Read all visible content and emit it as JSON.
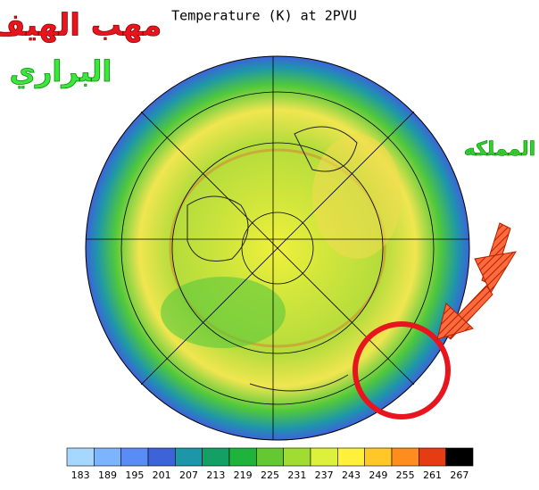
{
  "title": "Temperature (K) at 2PVU",
  "annotations": {
    "top_red": "مهب الهيف",
    "top_green": "البراري",
    "right_green": "المملكه"
  },
  "colorbar": {
    "ticks": [
      183,
      189,
      195,
      201,
      207,
      213,
      219,
      225,
      231,
      237,
      243,
      249,
      255,
      261,
      267
    ],
    "colors": [
      "#a6d8ff",
      "#7cb4ff",
      "#5a8cf5",
      "#3c64d8",
      "#1e96aa",
      "#14a064",
      "#1eb43c",
      "#64c832",
      "#a0dc32",
      "#dcf03c",
      "#fff03c",
      "#ffc828",
      "#ff8c1e",
      "#e63c14",
      "#000000"
    ]
  }
}
